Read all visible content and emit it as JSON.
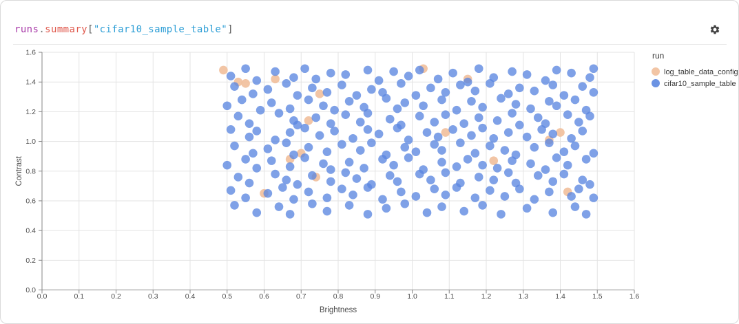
{
  "panel": {
    "title_tokens": [
      {
        "text": "runs",
        "color": "#a83aa8"
      },
      {
        "text": ".",
        "color": "#777777"
      },
      {
        "text": "summary",
        "color": "#e05a4e"
      },
      {
        "text": "[",
        "color": "#555555"
      },
      {
        "text": "\"cifar10_sample_table\"",
        "color": "#2f9fd6"
      },
      {
        "text": "]",
        "color": "#555555"
      }
    ],
    "gear_icon": "gear-icon"
  },
  "chart_data": {
    "type": "scatter",
    "title": "runs.summary[\"cifar10_sample_table\"]",
    "xlabel": "Brightness",
    "ylabel": "Contrast",
    "xlim": [
      0,
      1.6
    ],
    "ylim": [
      0,
      1.6
    ],
    "x_tick_step": 0.1,
    "y_tick_step": 0.2,
    "grid": true,
    "legend": {
      "title": "run",
      "position": "right",
      "entries": [
        {
          "name": "log_table_data_config",
          "color": "#f1bf9b"
        },
        {
          "name": "cifar10_sample_table",
          "color": "#5b87e0"
        }
      ]
    },
    "series": [
      {
        "name": "log_table_data_config",
        "color": "#f1bf9b",
        "opacity": 0.9,
        "points": [
          [
            0.49,
            1.48
          ],
          [
            0.53,
            1.4
          ],
          [
            0.55,
            1.39
          ],
          [
            0.63,
            1.42
          ],
          [
            0.75,
            1.32
          ],
          [
            0.72,
            1.14
          ],
          [
            0.7,
            0.92
          ],
          [
            0.67,
            0.88
          ],
          [
            1.03,
            1.49
          ],
          [
            1.15,
            1.42
          ],
          [
            1.09,
            1.06
          ],
          [
            1.4,
            1.06
          ],
          [
            1.37,
            1.01
          ],
          [
            1.22,
            0.87
          ],
          [
            0.74,
            0.76
          ],
          [
            1.42,
            0.66
          ],
          [
            0.6,
            0.65
          ]
        ]
      },
      {
        "name": "cifar10_sample_table",
        "color": "#5b87e0",
        "opacity": 0.78,
        "points": [
          [
            0.51,
            1.44
          ],
          [
            0.55,
            1.49
          ],
          [
            0.58,
            1.41
          ],
          [
            0.63,
            1.47
          ],
          [
            0.68,
            1.43
          ],
          [
            0.71,
            1.49
          ],
          [
            0.74,
            1.42
          ],
          [
            0.78,
            1.46
          ],
          [
            0.82,
            1.45
          ],
          [
            0.88,
            1.48
          ],
          [
            0.91,
            1.41
          ],
          [
            0.95,
            1.47
          ],
          [
            0.99,
            1.44
          ],
          [
            1.02,
            1.48
          ],
          [
            1.07,
            1.42
          ],
          [
            1.11,
            1.46
          ],
          [
            1.15,
            1.4
          ],
          [
            1.18,
            1.49
          ],
          [
            1.22,
            1.43
          ],
          [
            1.27,
            1.47
          ],
          [
            1.31,
            1.45
          ],
          [
            1.36,
            1.41
          ],
          [
            1.39,
            1.48
          ],
          [
            1.43,
            1.46
          ],
          [
            1.48,
            1.43
          ],
          [
            1.49,
            1.49
          ],
          [
            0.52,
            1.37
          ],
          [
            0.57,
            1.32
          ],
          [
            0.61,
            1.35
          ],
          [
            0.66,
            1.39
          ],
          [
            0.69,
            1.31
          ],
          [
            0.73,
            1.36
          ],
          [
            0.77,
            1.33
          ],
          [
            0.81,
            1.38
          ],
          [
            0.85,
            1.31
          ],
          [
            0.89,
            1.35
          ],
          [
            0.92,
            1.33
          ],
          [
            0.97,
            1.39
          ],
          [
            1.01,
            1.31
          ],
          [
            1.05,
            1.36
          ],
          [
            1.09,
            1.33
          ],
          [
            1.13,
            1.38
          ],
          [
            1.17,
            1.34
          ],
          [
            1.21,
            1.39
          ],
          [
            1.26,
            1.32
          ],
          [
            1.29,
            1.36
          ],
          [
            1.33,
            1.34
          ],
          [
            1.38,
            1.38
          ],
          [
            1.41,
            1.31
          ],
          [
            1.46,
            1.37
          ],
          [
            1.49,
            1.33
          ],
          [
            0.5,
            1.24
          ],
          [
            0.54,
            1.28
          ],
          [
            0.59,
            1.21
          ],
          [
            0.62,
            1.26
          ],
          [
            0.67,
            1.22
          ],
          [
            0.72,
            1.28
          ],
          [
            0.76,
            1.24
          ],
          [
            0.79,
            1.21
          ],
          [
            0.83,
            1.27
          ],
          [
            0.87,
            1.23
          ],
          [
            0.93,
            1.29
          ],
          [
            0.96,
            1.22
          ],
          [
            0.98,
            1.26
          ],
          [
            1.03,
            1.24
          ],
          [
            1.08,
            1.28
          ],
          [
            1.12,
            1.21
          ],
          [
            1.16,
            1.27
          ],
          [
            1.19,
            1.23
          ],
          [
            1.24,
            1.29
          ],
          [
            1.28,
            1.25
          ],
          [
            1.32,
            1.22
          ],
          [
            1.37,
            1.27
          ],
          [
            1.39,
            1.24
          ],
          [
            1.44,
            1.28
          ],
          [
            1.47,
            1.21
          ],
          [
            0.53,
            1.17
          ],
          [
            0.56,
            1.12
          ],
          [
            0.64,
            1.19
          ],
          [
            0.68,
            1.14
          ],
          [
            0.69,
            1.11
          ],
          [
            0.74,
            1.16
          ],
          [
            0.78,
            1.12
          ],
          [
            0.82,
            1.18
          ],
          [
            0.86,
            1.13
          ],
          [
            0.88,
            1.19
          ],
          [
            0.94,
            1.15
          ],
          [
            0.97,
            1.11
          ],
          [
            1.02,
            1.17
          ],
          [
            1.06,
            1.13
          ],
          [
            1.09,
            1.18
          ],
          [
            1.14,
            1.12
          ],
          [
            1.18,
            1.16
          ],
          [
            1.23,
            1.14
          ],
          [
            1.27,
            1.19
          ],
          [
            1.29,
            1.11
          ],
          [
            1.34,
            1.16
          ],
          [
            1.36,
            1.12
          ],
          [
            1.42,
            1.18
          ],
          [
            1.45,
            1.13
          ],
          [
            1.48,
            1.17
          ],
          [
            0.51,
            1.08
          ],
          [
            0.56,
            1.03
          ],
          [
            0.58,
            1.07
          ],
          [
            0.63,
            1.01
          ],
          [
            0.67,
            1.06
          ],
          [
            0.71,
            1.09
          ],
          [
            0.75,
            1.04
          ],
          [
            0.79,
            1.07
          ],
          [
            0.84,
            1.02
          ],
          [
            0.88,
            1.08
          ],
          [
            0.91,
            1.05
          ],
          [
            0.96,
            1.09
          ],
          [
            0.99,
            1.01
          ],
          [
            1.04,
            1.06
          ],
          [
            1.07,
            1.03
          ],
          [
            1.11,
            1.08
          ],
          [
            1.16,
            1.04
          ],
          [
            1.19,
            1.09
          ],
          [
            1.22,
            1.02
          ],
          [
            1.26,
            1.06
          ],
          [
            1.31,
            1.03
          ],
          [
            1.35,
            1.08
          ],
          [
            1.38,
            1.05
          ],
          [
            1.43,
            1.02
          ],
          [
            1.46,
            1.07
          ],
          [
            0.52,
            0.97
          ],
          [
            0.57,
            0.92
          ],
          [
            0.61,
            0.95
          ],
          [
            0.66,
            0.99
          ],
          [
            0.68,
            0.91
          ],
          [
            0.72,
            0.96
          ],
          [
            0.77,
            0.93
          ],
          [
            0.81,
            0.98
          ],
          [
            0.86,
            0.94
          ],
          [
            0.89,
            0.99
          ],
          [
            0.93,
            0.91
          ],
          [
            0.98,
            0.96
          ],
          [
            1.01,
            0.93
          ],
          [
            1.06,
            0.98
          ],
          [
            1.08,
            0.94
          ],
          [
            1.13,
            0.99
          ],
          [
            1.17,
            0.92
          ],
          [
            1.21,
            0.97
          ],
          [
            1.25,
            0.94
          ],
          [
            1.28,
            0.91
          ],
          [
            1.33,
            0.96
          ],
          [
            1.37,
            0.99
          ],
          [
            1.41,
            0.93
          ],
          [
            1.44,
            0.97
          ],
          [
            1.49,
            0.92
          ],
          [
            0.5,
            0.84
          ],
          [
            0.55,
            0.88
          ],
          [
            0.58,
            0.82
          ],
          [
            0.62,
            0.87
          ],
          [
            0.67,
            0.83
          ],
          [
            0.71,
            0.89
          ],
          [
            0.76,
            0.85
          ],
          [
            0.78,
            0.81
          ],
          [
            0.83,
            0.86
          ],
          [
            0.87,
            0.82
          ],
          [
            0.92,
            0.88
          ],
          [
            0.95,
            0.84
          ],
          [
            0.99,
            0.89
          ],
          [
            1.03,
            0.81
          ],
          [
            1.08,
            0.86
          ],
          [
            1.12,
            0.83
          ],
          [
            1.15,
            0.88
          ],
          [
            1.19,
            0.84
          ],
          [
            1.23,
            0.82
          ],
          [
            1.27,
            0.87
          ],
          [
            1.32,
            0.85
          ],
          [
            1.36,
            0.81
          ],
          [
            1.39,
            0.89
          ],
          [
            1.42,
            0.84
          ],
          [
            1.47,
            0.88
          ],
          [
            0.53,
            0.76
          ],
          [
            0.56,
            0.72
          ],
          [
            0.63,
            0.78
          ],
          [
            0.66,
            0.74
          ],
          [
            0.69,
            0.71
          ],
          [
            0.73,
            0.77
          ],
          [
            0.78,
            0.73
          ],
          [
            0.82,
            0.79
          ],
          [
            0.85,
            0.75
          ],
          [
            0.89,
            0.71
          ],
          [
            0.94,
            0.77
          ],
          [
            0.96,
            0.73
          ],
          [
            1.02,
            0.78
          ],
          [
            1.05,
            0.74
          ],
          [
            1.09,
            0.79
          ],
          [
            1.13,
            0.72
          ],
          [
            1.18,
            0.76
          ],
          [
            1.22,
            0.74
          ],
          [
            1.26,
            0.79
          ],
          [
            1.28,
            0.72
          ],
          [
            1.34,
            0.77
          ],
          [
            1.38,
            0.73
          ],
          [
            1.41,
            0.78
          ],
          [
            1.46,
            0.74
          ],
          [
            1.48,
            0.71
          ],
          [
            0.51,
            0.67
          ],
          [
            0.55,
            0.62
          ],
          [
            0.61,
            0.65
          ],
          [
            0.65,
            0.69
          ],
          [
            0.68,
            0.61
          ],
          [
            0.72,
            0.66
          ],
          [
            0.77,
            0.62
          ],
          [
            0.81,
            0.68
          ],
          [
            0.84,
            0.64
          ],
          [
            0.88,
            0.69
          ],
          [
            0.92,
            0.61
          ],
          [
            0.97,
            0.66
          ],
          [
            1.01,
            0.63
          ],
          [
            1.06,
            0.68
          ],
          [
            1.09,
            0.64
          ],
          [
            1.12,
            0.69
          ],
          [
            1.17,
            0.62
          ],
          [
            1.21,
            0.67
          ],
          [
            1.25,
            0.63
          ],
          [
            1.29,
            0.68
          ],
          [
            1.33,
            0.61
          ],
          [
            1.37,
            0.66
          ],
          [
            1.43,
            0.63
          ],
          [
            1.45,
            0.68
          ],
          [
            1.49,
            0.62
          ],
          [
            0.52,
            0.57
          ],
          [
            0.58,
            0.52
          ],
          [
            0.64,
            0.56
          ],
          [
            0.67,
            0.51
          ],
          [
            0.73,
            0.58
          ],
          [
            0.77,
            0.53
          ],
          [
            0.83,
            0.57
          ],
          [
            0.88,
            0.51
          ],
          [
            0.93,
            0.55
          ],
          [
            0.98,
            0.58
          ],
          [
            1.04,
            0.52
          ],
          [
            1.08,
            0.56
          ],
          [
            1.14,
            0.53
          ],
          [
            1.19,
            0.57
          ],
          [
            1.24,
            0.51
          ],
          [
            1.31,
            0.55
          ],
          [
            1.38,
            0.52
          ],
          [
            1.44,
            0.56
          ],
          [
            1.47,
            0.51
          ]
        ]
      }
    ],
    "style": {
      "grid_color": "#e3e3e3",
      "axis_color": "#858585",
      "tick_label_color": "#4d4d4d",
      "axis_title_color": "#4a4a4a",
      "legend_text_color": "#383838",
      "point_radius": 6.3
    }
  }
}
